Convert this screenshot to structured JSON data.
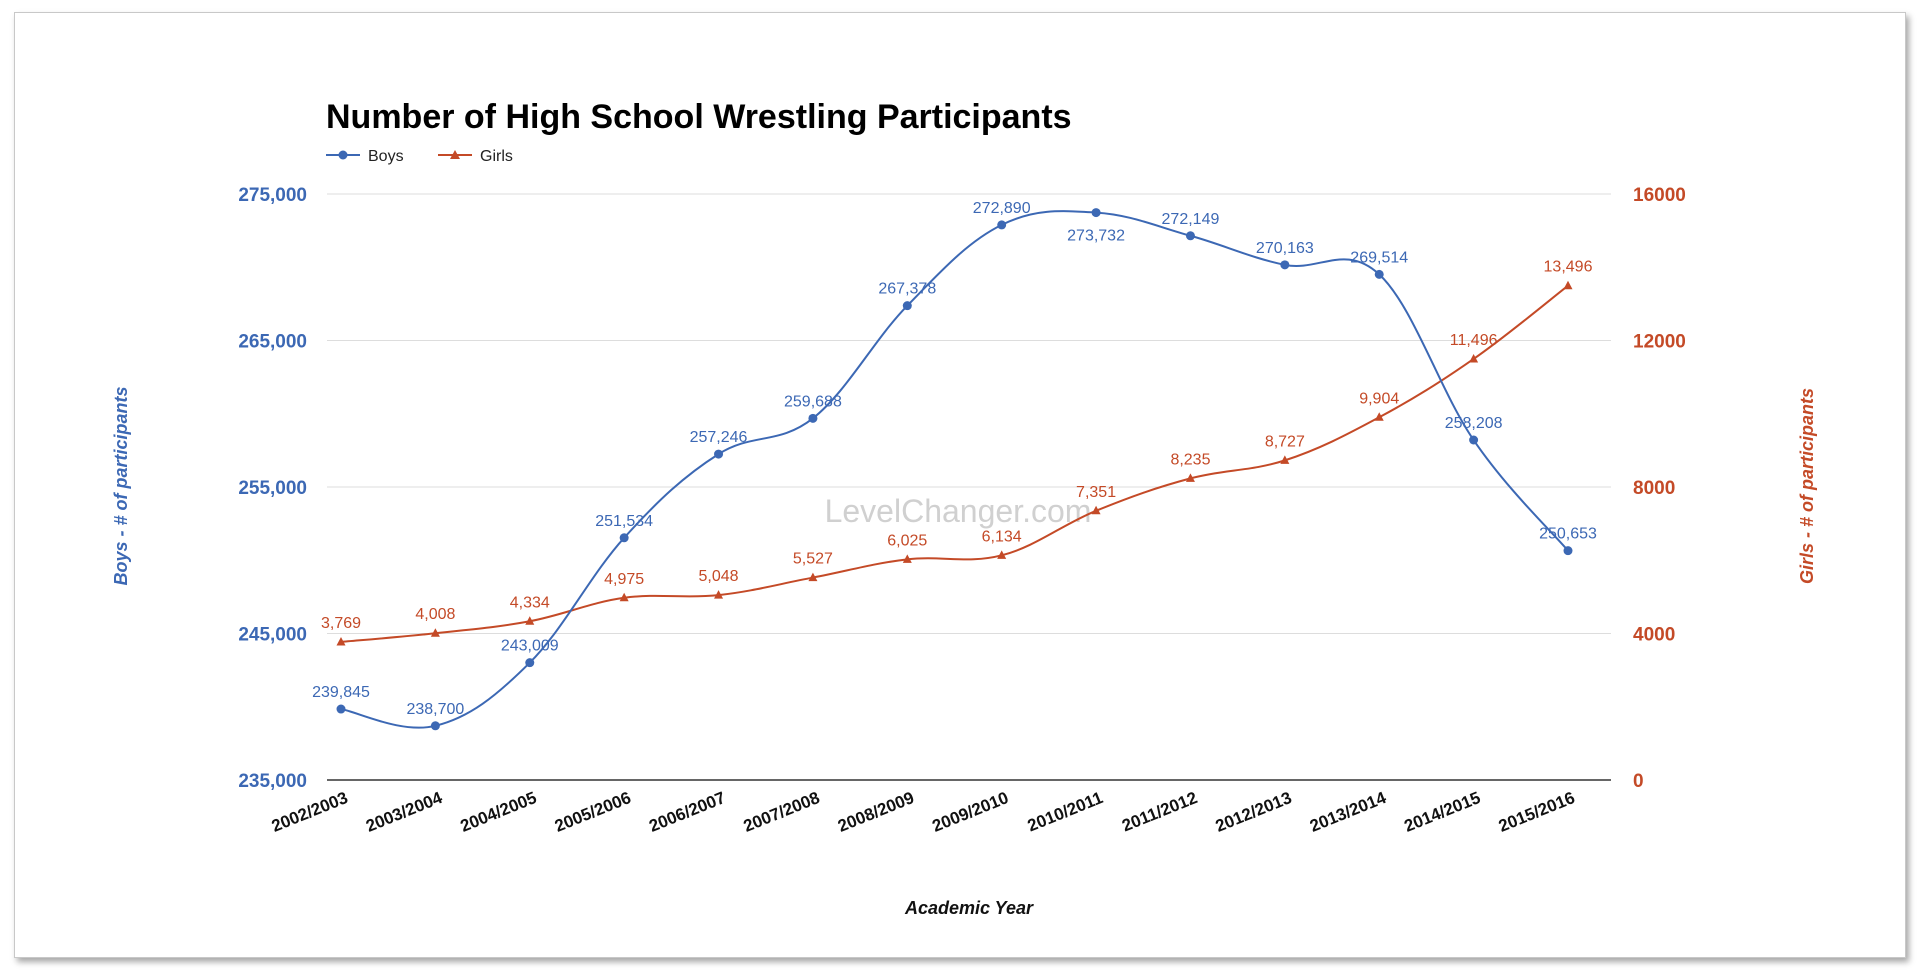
{
  "chart_data": {
    "type": "line",
    "title": "Number of High School Wrestling Participants",
    "xlabel": "Academic Year",
    "ylabel_left": "Boys - # of participants",
    "ylabel_right": "Girls - # of participants",
    "categories": [
      "2002/2003",
      "2003/2004",
      "2004/2005",
      "2005/2006",
      "2006/2007",
      "2007/2008",
      "2008/2009",
      "2009/2010",
      "2010/2011",
      "2011/2012",
      "2012/2013",
      "2013/2014",
      "2014/2015",
      "2015/2016"
    ],
    "ylim_left": [
      235000,
      275000
    ],
    "ylim_right": [
      0,
      16000
    ],
    "yticks_left": [
      "275,000",
      "265,000",
      "255,000",
      "245,000",
      "235,000"
    ],
    "yticks_right": [
      "16000",
      "12000",
      "8000",
      "4000",
      "0"
    ],
    "legend_position": "top-left",
    "grid": true,
    "watermark": "LevelChanger.com",
    "series": [
      {
        "name": "Boys",
        "axis": "left",
        "color": "#3c68b4",
        "marker": "circle",
        "values": [
          239845,
          238700,
          243009,
          251534,
          257246,
          259688,
          267378,
          272890,
          273732,
          272149,
          270163,
          269514,
          258208,
          250653
        ],
        "labels": [
          "239,845",
          "238,700",
          "243,009",
          "251,534",
          "257,246",
          "259,688",
          "267,378",
          "272,890",
          "273,732",
          "272,149",
          "270,163",
          "269,514",
          "258,208",
          "250,653"
        ]
      },
      {
        "name": "Girls",
        "axis": "right",
        "color": "#c44a27",
        "marker": "triangle",
        "values": [
          3769,
          4008,
          4334,
          4975,
          5048,
          5527,
          6025,
          6134,
          7351,
          8235,
          8727,
          9904,
          11496,
          13496
        ],
        "labels": [
          "3,769",
          "4,008",
          "4,334",
          "4,975",
          "5,048",
          "5,527",
          "6,025",
          "6,134",
          "7,351",
          "8,235",
          "8,727",
          "9,904",
          "11,496",
          "13,496"
        ]
      }
    ]
  }
}
